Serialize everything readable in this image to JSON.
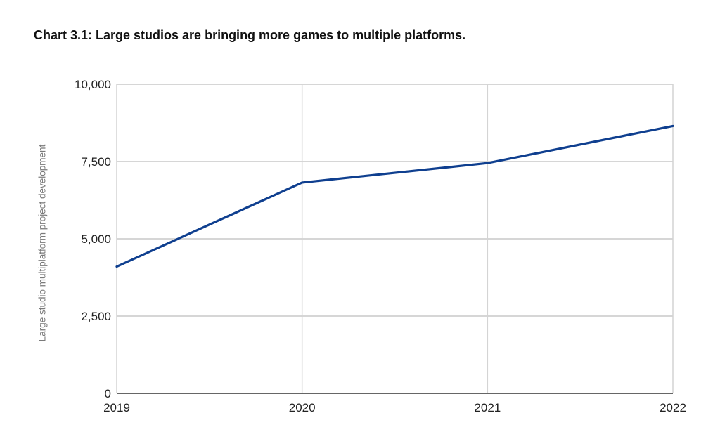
{
  "chart_data": {
    "type": "line",
    "title": "Chart 3.1: Large studios are bringing more games to multiple platforms.",
    "xlabel": "",
    "ylabel": "Large studio multiplatform project development",
    "x": [
      "2019",
      "2020",
      "2021",
      "2022"
    ],
    "series": [
      {
        "values": [
          4100,
          6820,
          7450,
          8650
        ],
        "color": "#0f3f8f"
      }
    ],
    "ylim": [
      0,
      10000
    ],
    "yticks": [
      0,
      2500,
      5000,
      7500,
      10000
    ],
    "ytick_labels": [
      "0",
      "2,500",
      "5,000",
      "7,500",
      "10,000"
    ],
    "grid": true,
    "legend": "none"
  }
}
